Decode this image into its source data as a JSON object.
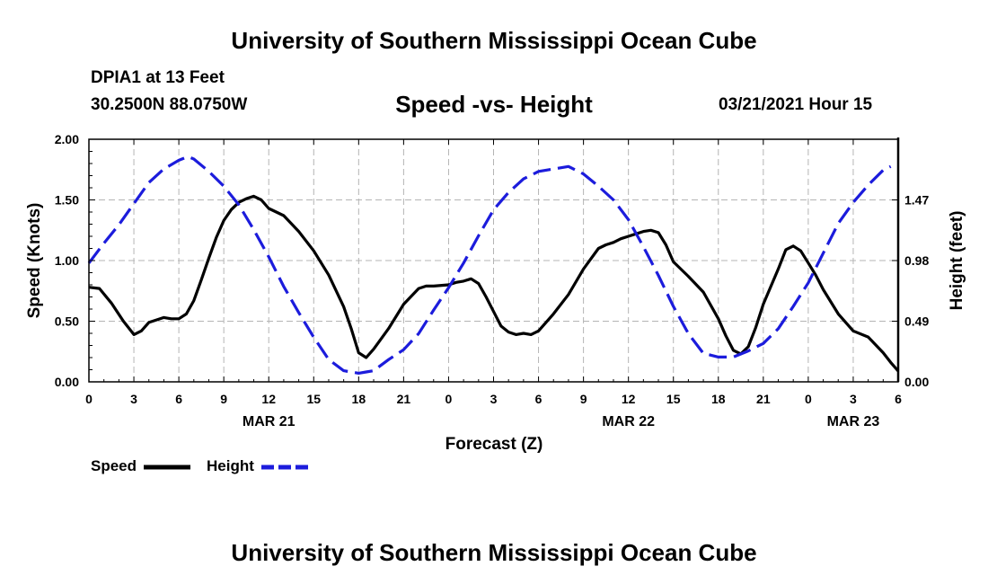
{
  "header": {
    "title": "University of Southern Mississippi Ocean Cube"
  },
  "footer": {
    "title": "University of Southern Mississippi Ocean Cube"
  },
  "station": {
    "name": "DPIA1 at 13 Feet",
    "coords": "30.2500N 88.0750W"
  },
  "chart_data": {
    "type": "line",
    "title": "Speed -vs- Height",
    "timestamp": "03/21/2021 Hour 15",
    "xlabel": "Forecast (Z)",
    "ylabel": "Speed (Knots)",
    "y2label": "Height (feet)",
    "xlim": [
      0,
      54
    ],
    "ylim": [
      0,
      2.0
    ],
    "y2lim": [
      0,
      1.96
    ],
    "x_ticks": [
      0,
      3,
      6,
      9,
      12,
      15,
      18,
      21,
      24,
      27,
      30,
      33,
      36,
      39,
      42,
      45,
      48,
      51,
      54
    ],
    "x_tick_labels": [
      "0",
      "3",
      "6",
      "9",
      "12",
      "15",
      "18",
      "21",
      "0",
      "3",
      "6",
      "9",
      "12",
      "15",
      "18",
      "21",
      "0",
      "3",
      "6"
    ],
    "date_labels": [
      {
        "x": 12,
        "label": "MAR 21"
      },
      {
        "x": 36,
        "label": "MAR 22"
      },
      {
        "x": 51,
        "label": "MAR 23"
      }
    ],
    "y_ticks": [
      0,
      0.5,
      1.0,
      1.5,
      2.0
    ],
    "y_tick_labels": [
      "0.00",
      "0.50",
      "1.00",
      "1.50",
      "2.00"
    ],
    "y2_ticks": [
      0,
      0.49,
      0.98,
      1.47
    ],
    "y2_tick_labels": [
      "0.00",
      "0.49",
      "0.98",
      "1.47"
    ],
    "grid": true,
    "series": [
      {
        "name": "Speed",
        "axis": "left",
        "color": "#000000",
        "dash": "solid",
        "x": [
          0,
          0.7,
          1.5,
          2.3,
          3,
          3.5,
          4,
          4.5,
          5,
          5.5,
          6,
          6.5,
          7,
          7.5,
          8,
          8.5,
          9,
          9.5,
          10,
          10.5,
          11,
          11.5,
          12,
          12.5,
          13,
          14,
          15,
          16,
          17,
          17.5,
          18,
          18.5,
          19,
          20,
          21,
          22,
          22.5,
          23,
          24,
          24.5,
          25,
          25.5,
          26,
          26.5,
          27,
          27.5,
          28,
          28.5,
          29,
          29.5,
          30,
          31,
          32,
          33,
          34,
          34.5,
          35,
          35.5,
          36,
          36.5,
          37,
          37.5,
          38,
          38.5,
          39,
          40,
          41,
          42,
          42.5,
          43,
          43.5,
          44,
          44.5,
          45,
          46,
          46.5,
          47,
          47.5,
          48,
          48.5,
          49,
          50,
          51,
          52,
          53,
          53.5,
          54
        ],
        "values": [
          0.78,
          0.77,
          0.65,
          0.5,
          0.39,
          0.42,
          0.49,
          0.51,
          0.53,
          0.52,
          0.52,
          0.56,
          0.67,
          0.84,
          1.02,
          1.19,
          1.33,
          1.42,
          1.48,
          1.51,
          1.53,
          1.5,
          1.43,
          1.4,
          1.37,
          1.24,
          1.08,
          0.88,
          0.62,
          0.44,
          0.24,
          0.2,
          0.27,
          0.44,
          0.64,
          0.77,
          0.79,
          0.79,
          0.8,
          0.82,
          0.83,
          0.85,
          0.81,
          0.7,
          0.58,
          0.46,
          0.41,
          0.39,
          0.4,
          0.39,
          0.42,
          0.56,
          0.72,
          0.93,
          1.1,
          1.13,
          1.15,
          1.18,
          1.2,
          1.22,
          1.24,
          1.25,
          1.23,
          1.13,
          0.99,
          0.87,
          0.74,
          0.52,
          0.38,
          0.26,
          0.23,
          0.29,
          0.45,
          0.64,
          0.93,
          1.09,
          1.12,
          1.08,
          0.98,
          0.88,
          0.76,
          0.56,
          0.42,
          0.37,
          0.24,
          0.16,
          0.09
        ]
      },
      {
        "name": "Height",
        "axis": "right",
        "color": "#1c1cdc",
        "dash": "dashed",
        "x": [
          0,
          1,
          2,
          3,
          4,
          5,
          6,
          6.6,
          7,
          8,
          9,
          10,
          11,
          12,
          13,
          14,
          15,
          16,
          17,
          18,
          18.5,
          19,
          20,
          21,
          22,
          23,
          24,
          25,
          26,
          27,
          28,
          29,
          30,
          30.5,
          31,
          32,
          33,
          34,
          35,
          36,
          37,
          38,
          39,
          40,
          41,
          42,
          43,
          44,
          45,
          46,
          47,
          48,
          49,
          50,
          51,
          52,
          53,
          53.5
        ],
        "values": [
          0.96,
          1.12,
          1.27,
          1.44,
          1.61,
          1.72,
          1.79,
          1.82,
          1.8,
          1.7,
          1.58,
          1.43,
          1.23,
          1.01,
          0.77,
          0.56,
          0.36,
          0.18,
          0.09,
          0.07,
          0.08,
          0.09,
          0.18,
          0.26,
          0.39,
          0.58,
          0.76,
          0.96,
          1.18,
          1.39,
          1.53,
          1.64,
          1.7,
          1.71,
          1.72,
          1.74,
          1.68,
          1.58,
          1.47,
          1.31,
          1.09,
          0.86,
          0.61,
          0.39,
          0.23,
          0.2,
          0.2,
          0.25,
          0.31,
          0.43,
          0.61,
          0.8,
          1.04,
          1.28,
          1.45,
          1.59,
          1.71,
          1.74
        ]
      }
    ],
    "legend": {
      "position": "bottom-left",
      "items": [
        "Speed",
        "Height"
      ]
    }
  }
}
